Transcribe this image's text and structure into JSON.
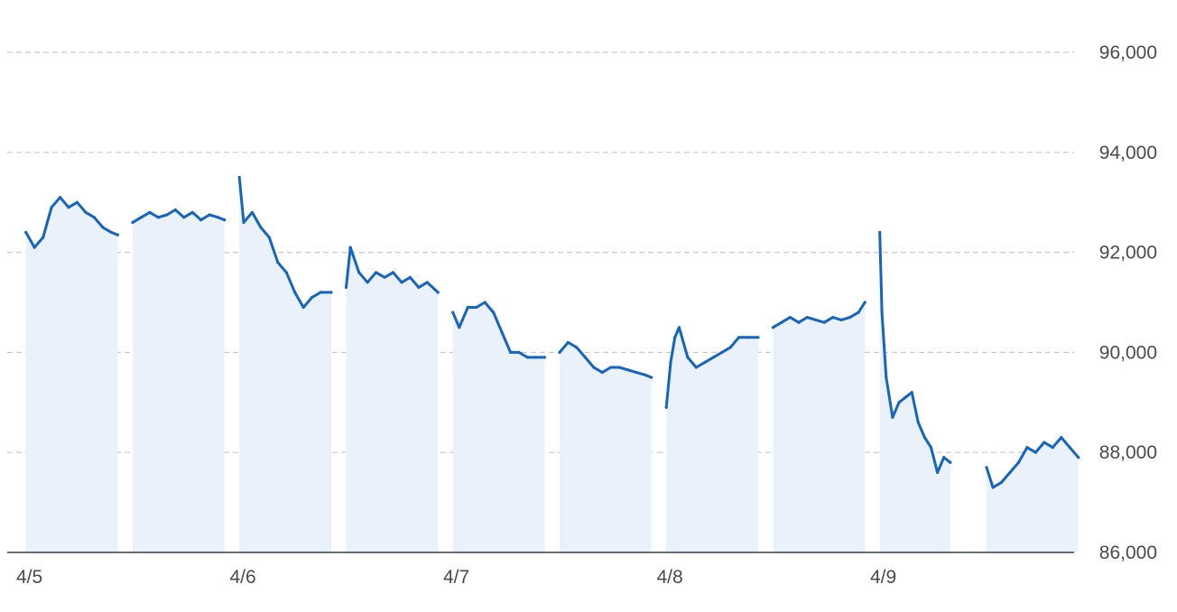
{
  "chart_data": {
    "type": "area",
    "title": "",
    "xlabel": "",
    "ylabel": "",
    "ylim": [
      86000,
      96000
    ],
    "yticks": [
      "86,000",
      "88,000",
      "90,000",
      "92,000",
      "94,000",
      "96,000"
    ],
    "ytick_values": [
      86000,
      88000,
      90000,
      92000,
      94000,
      96000
    ],
    "xticks": [
      "4/5",
      "4/6",
      "4/7",
      "4/8",
      "4/9"
    ],
    "grid": true,
    "legend": "none",
    "colors": {
      "line": "#1565c0",
      "fill": "#eaf1fa",
      "grid": "#c9c9c9",
      "axis": "#333f4f"
    },
    "series": [
      {
        "x": [
          0.02,
          0.06,
          0.1,
          0.14,
          0.18,
          0.22,
          0.26,
          0.3,
          0.34,
          0.38,
          0.42,
          0.45
        ],
        "y": [
          92400,
          92100,
          92300,
          92900,
          93100,
          92900,
          93000,
          92800,
          92700,
          92500,
          92400,
          92350
        ]
      },
      {
        "x": [
          0.52,
          0.56,
          0.6,
          0.64,
          0.68,
          0.72,
          0.76,
          0.8,
          0.84,
          0.88,
          0.92,
          0.95
        ],
        "y": [
          92600,
          92700,
          92800,
          92700,
          92750,
          92850,
          92700,
          92800,
          92650,
          92750,
          92700,
          92650
        ]
      },
      {
        "x": [
          1.02,
          1.04,
          1.08,
          1.12,
          1.16,
          1.2,
          1.24,
          1.28,
          1.32,
          1.36,
          1.4,
          1.45
        ],
        "y": [
          93500,
          92600,
          92800,
          92500,
          92300,
          91800,
          91600,
          91200,
          90900,
          91100,
          91200,
          91200
        ]
      },
      {
        "x": [
          1.52,
          1.54,
          1.58,
          1.62,
          1.66,
          1.7,
          1.74,
          1.78,
          1.82,
          1.86,
          1.9,
          1.95
        ],
        "y": [
          91300,
          92100,
          91600,
          91400,
          91600,
          91500,
          91600,
          91400,
          91500,
          91300,
          91400,
          91200
        ]
      },
      {
        "x": [
          2.02,
          2.05,
          2.09,
          2.13,
          2.17,
          2.21,
          2.25,
          2.29,
          2.33,
          2.37,
          2.41,
          2.45
        ],
        "y": [
          90800,
          90500,
          90900,
          90900,
          91000,
          90800,
          90400,
          90000,
          90000,
          89900,
          89900,
          89900
        ]
      },
      {
        "x": [
          2.52,
          2.56,
          2.6,
          2.64,
          2.68,
          2.72,
          2.76,
          2.8,
          2.84,
          2.88,
          2.92,
          2.95
        ],
        "y": [
          90000,
          90200,
          90100,
          89900,
          89700,
          89600,
          89700,
          89700,
          89650,
          89600,
          89550,
          89500
        ]
      },
      {
        "x": [
          3.02,
          3.04,
          3.06,
          3.08,
          3.12,
          3.16,
          3.2,
          3.24,
          3.28,
          3.32,
          3.36,
          3.4,
          3.45
        ],
        "y": [
          88900,
          89800,
          90300,
          90500,
          89900,
          89700,
          89800,
          89900,
          90000,
          90100,
          90300,
          90300,
          90300
        ]
      },
      {
        "x": [
          3.52,
          3.56,
          3.6,
          3.64,
          3.68,
          3.72,
          3.76,
          3.8,
          3.84,
          3.88,
          3.92,
          3.95
        ],
        "y": [
          90500,
          90600,
          90700,
          90600,
          90700,
          90650,
          90600,
          90700,
          90650,
          90700,
          90800,
          91000
        ]
      },
      {
        "x": [
          4.02,
          4.03,
          4.05,
          4.08,
          4.11,
          4.14,
          4.17,
          4.2,
          4.23,
          4.26,
          4.29,
          4.32,
          4.35
        ],
        "y": [
          92400,
          90800,
          89500,
          88700,
          89000,
          89100,
          89200,
          88600,
          88300,
          88100,
          87600,
          87900,
          87800
        ]
      },
      {
        "x": [
          4.52,
          4.55,
          4.59,
          4.63,
          4.67,
          4.71,
          4.75,
          4.79,
          4.83,
          4.87,
          4.91,
          4.95
        ],
        "y": [
          87700,
          87300,
          87400,
          87600,
          87800,
          88100,
          88000,
          88200,
          88100,
          88300,
          88100,
          87900
        ]
      }
    ]
  }
}
